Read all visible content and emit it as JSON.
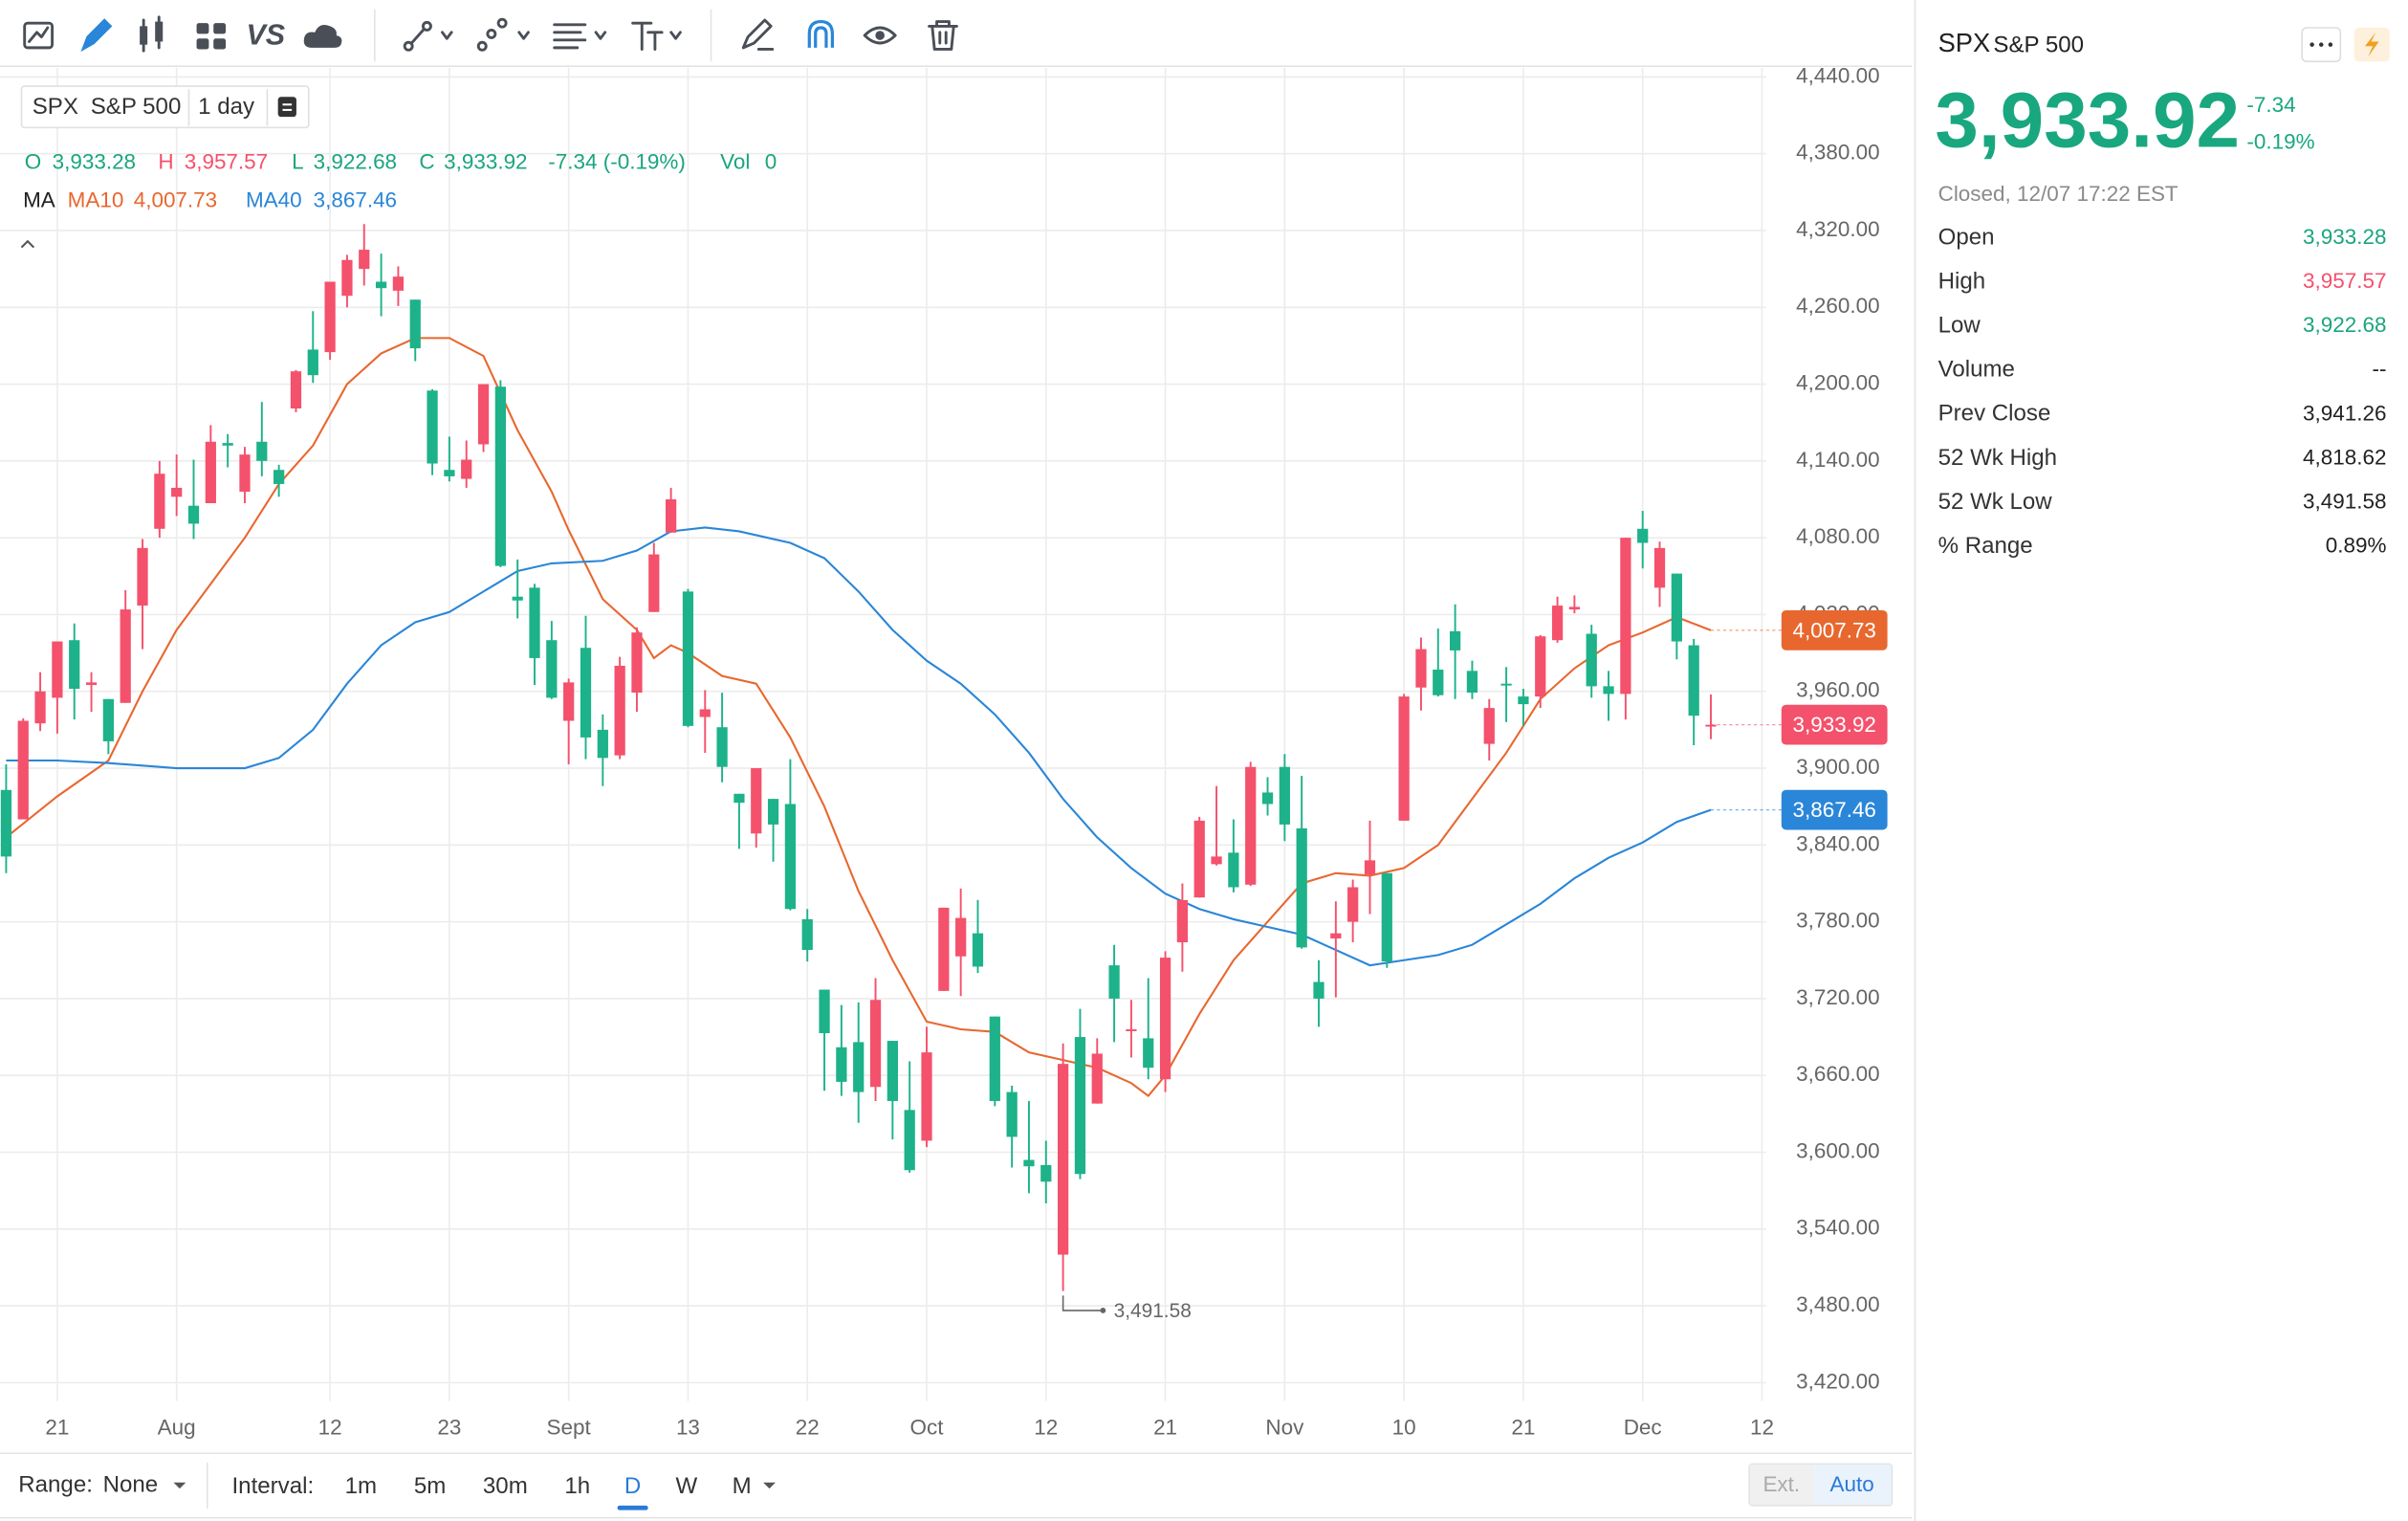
{
  "toolbar": {
    "compare": "VS"
  },
  "legend": {
    "symbol": "SPX",
    "name": "S&P 500",
    "interval": "1 day",
    "open_label": "O",
    "high_label": "H",
    "low_label": "L",
    "close_label": "C",
    "change": "-7.34 (-0.19%)",
    "volume_label": "Vol",
    "volume": 0,
    "ma_label": "MA"
  },
  "chart_data": {
    "type": "candlestick",
    "up_color": "#f4516c",
    "down_color": "#1db28a",
    "grid": true,
    "xlim": [
      -0.36,
      103.69
    ],
    "ylim": [
      3420,
      4440
    ],
    "xticks": [
      {
        "value": 3,
        "label": "21"
      },
      {
        "value": 10,
        "label": "Aug"
      },
      {
        "value": 19,
        "label": "12"
      },
      {
        "value": 26,
        "label": "23"
      },
      {
        "value": 33,
        "label": "Sept"
      },
      {
        "value": 40,
        "label": "13"
      },
      {
        "value": 47,
        "label": "22"
      },
      {
        "value": 54,
        "label": "Oct"
      },
      {
        "value": 61,
        "label": "12"
      },
      {
        "value": 68,
        "label": "21"
      },
      {
        "value": 75,
        "label": "Nov"
      },
      {
        "value": 82,
        "label": "10"
      },
      {
        "value": 89,
        "label": "21"
      },
      {
        "value": 96,
        "label": "Dec"
      },
      {
        "value": 103,
        "label": "12"
      }
    ],
    "yticks": [
      {
        "value": 4440,
        "label": "4,440.00"
      },
      {
        "value": 4380,
        "label": "4,380.00"
      },
      {
        "value": 4320,
        "label": "4,320.00"
      },
      {
        "value": 4260,
        "label": "4,260.00"
      },
      {
        "value": 4200,
        "label": "4,200.00"
      },
      {
        "value": 4140,
        "label": "4,140.00"
      },
      {
        "value": 4080,
        "label": "4,080.00"
      },
      {
        "value": 4020,
        "label": "4,020.00"
      },
      {
        "value": 3960,
        "label": "3,960.00"
      },
      {
        "value": 3900,
        "label": "3,900.00"
      },
      {
        "value": 3840,
        "label": "3,840.00"
      },
      {
        "value": 3780,
        "label": "3,780.00"
      },
      {
        "value": 3720,
        "label": "3,720.00"
      },
      {
        "value": 3660,
        "label": "3,660.00"
      },
      {
        "value": 3600,
        "label": "3,600.00"
      },
      {
        "value": 3540,
        "label": "3,540.00"
      },
      {
        "value": 3480,
        "label": "3,480.00"
      },
      {
        "value": 3420,
        "label": "3,420.00"
      }
    ],
    "open": [
      3883,
      3860,
      3935,
      3955,
      4000,
      3965,
      3954,
      3951,
      4027,
      4087,
      4112,
      4105,
      4107,
      4154,
      4116,
      4155,
      4133,
      4181,
      4227,
      4225,
      4269,
      4290,
      4280,
      4273,
      4266,
      4195,
      4133,
      4126,
      4153,
      4198,
      4034,
      4041,
      4000,
      3937,
      3994,
      3930,
      3910,
      3959,
      4022,
      4084,
      4038,
      3940,
      3932,
      3880,
      3849,
      3876,
      3872,
      3782,
      3727,
      3682,
      3686,
      3651,
      3687,
      3633,
      3609,
      3726,
      3753,
      3771,
      3706,
      3647,
      3594,
      3590,
      3520,
      3690,
      3638,
      3746,
      3696,
      3689,
      3657,
      3764,
      3799,
      3825,
      3834,
      3809,
      3881,
      3901,
      3853,
      3733,
      3767,
      3780,
      3817,
      3818,
      3859,
      3963,
      3977,
      4007,
      3976,
      3919,
      3966,
      3956,
      3956,
      4000,
      4024,
      4005,
      3964,
      3958,
      4087,
      4041,
      4052,
      3996,
      3933.28
    ],
    "high": [
      3903,
      3939,
      3975,
      3999,
      4013,
      3975,
      3954,
      4039,
      4079,
      4140,
      4145,
      4141,
      4168,
      4161,
      4151,
      4186,
      4137,
      4211,
      4257,
      4280,
      4301,
      4325,
      4302,
      4292,
      4266,
      4196,
      4159,
      4156,
      4200,
      4203,
      4063,
      4044,
      4015,
      3970,
      4019,
      3942,
      3987,
      4010,
      4076,
      4119,
      4040,
      3961,
      3959,
      3880,
      3900,
      3876,
      3907,
      3790,
      3727,
      3715,
      3717,
      3736,
      3687,
      3671,
      3698,
      3791,
      3806,
      3797,
      3706,
      3652,
      3640,
      3609,
      3685,
      3712,
      3689,
      3762,
      3719,
      3736,
      3757,
      3810,
      3862,
      3886,
      3860,
      3905,
      3893,
      3911,
      3894,
      3750,
      3796,
      3813,
      3859,
      3818,
      3958,
      4002,
      4009,
      4028,
      3984,
      3954,
      3979,
      3962,
      4004,
      4034,
      4035,
      4012,
      3976,
      4080,
      4101,
      4077,
      4052,
      4001,
      3957.57
    ],
    "low": [
      3818,
      3860,
      3929,
      3927,
      3938,
      3944,
      3911,
      3951,
      3993,
      4080,
      4097,
      4079,
      4107,
      4135,
      4107,
      4128,
      4112,
      4178,
      4201,
      4219,
      4260,
      4277,
      4253,
      4261,
      4218,
      4129,
      4124,
      4119,
      4147,
      4057,
      4017,
      3965,
      3954,
      3903,
      3907,
      3886,
      3907,
      3944,
      4022,
      4084,
      3932,
      3912,
      3889,
      3837,
      3838,
      3827,
      3789,
      3749,
      3648,
      3644,
      3623,
      3640,
      3610,
      3584,
      3604,
      3726,
      3722,
      3740,
      3636,
      3588,
      3568,
      3560,
      3491.58,
      3579,
      3638,
      3686,
      3674,
      3657,
      3647,
      3741,
      3799,
      3824,
      3803,
      3808,
      3863,
      3843,
      3759,
      3698,
      3721,
      3764,
      3786,
      3744,
      3859,
      3945,
      3956,
      3954,
      3954,
      3906,
      3936,
      3933,
      3947,
      3998,
      4021,
      3955,
      3937,
      3938,
      4056,
      4026,
      3985,
      3918,
      3922.68
    ],
    "close": [
      3831,
      3937,
      3960,
      3999,
      3962,
      3967,
      3921,
      4024,
      4072,
      4130,
      4119,
      4091,
      4155,
      4152,
      4145,
      4140,
      4122,
      4210,
      4207,
      4280,
      4297,
      4305,
      4275,
      4284,
      4228,
      4138,
      4128,
      4141,
      4200,
      4058,
      4031,
      3986,
      3955,
      3967,
      3924,
      3908,
      3980,
      4006,
      4067,
      4110,
      3933,
      3946,
      3901,
      3873,
      3900,
      3856,
      3790,
      3758,
      3693,
      3655,
      3647,
      3719,
      3640,
      3586,
      3678,
      3791,
      3783,
      3745,
      3640,
      3612,
      3589,
      3577,
      3669,
      3583,
      3677,
      3720,
      3696,
      3666,
      3752,
      3797,
      3859,
      3831,
      3807,
      3901,
      3872,
      3856,
      3760,
      3720,
      3771,
      3807,
      3828,
      3749,
      3956,
      3993,
      3957,
      3992,
      3959,
      3947,
      3965,
      3950,
      4003,
      4027,
      4026,
      3964,
      3958,
      4080,
      4076,
      4072,
      3999,
      3941,
      3933.92
    ],
    "last_labels": {
      "open": "3,933.28",
      "high": "3,957.57",
      "low": "3,922.68",
      "close": "3,933.92"
    },
    "close_tag_color": "#f4516c",
    "ma_series": [
      {
        "name": "MA10",
        "color": "#e8672f",
        "last_label": "4,007.73",
        "x": [
          0,
          3,
          6,
          8,
          10,
          12,
          14,
          16,
          18,
          20,
          22,
          24,
          26,
          28,
          30,
          32,
          33,
          35,
          37,
          38,
          39,
          40,
          42,
          44,
          46,
          48,
          50,
          52,
          54,
          56,
          58,
          60,
          62,
          64,
          66,
          67,
          68,
          70,
          72,
          74,
          76,
          78,
          80,
          82,
          84,
          86,
          88,
          90,
          92,
          94,
          96,
          98,
          100
        ],
        "values": [
          3846,
          3878,
          3906,
          3960,
          4008,
          4044,
          4080,
          4122,
          4152,
          4200,
          4224,
          4236,
          4236,
          4222,
          4164,
          4116,
          4086,
          4032,
          4008,
          3986,
          3996,
          3990,
          3972,
          3966,
          3924,
          3870,
          3804,
          3750,
          3702,
          3696,
          3694,
          3678,
          3672,
          3666,
          3654,
          3644,
          3660,
          3708,
          3750,
          3780,
          3810,
          3818,
          3816,
          3822,
          3840,
          3876,
          3912,
          3954,
          3978,
          3996,
          4006,
          4018,
          4007.73
        ]
      },
      {
        "name": "MA40",
        "color": "#2a86d8",
        "last_label": "3,867.46",
        "x": [
          0,
          3,
          6,
          8,
          10,
          12,
          14,
          16,
          18,
          20,
          22,
          24,
          26,
          28,
          30,
          32,
          35,
          37,
          39,
          41,
          43,
          46,
          48,
          50,
          52,
          54,
          56,
          58,
          60,
          62,
          64,
          66,
          68,
          70,
          72,
          74,
          76,
          78,
          80,
          82,
          84,
          86,
          88,
          90,
          92,
          94,
          96,
          98,
          100
        ],
        "values": [
          3906,
          3906,
          3904,
          3902,
          3900,
          3900,
          3900,
          3908,
          3930,
          3966,
          3996,
          4014,
          4022,
          4038,
          4054,
          4060,
          4062,
          4070,
          4085,
          4088,
          4085,
          4076,
          4064,
          4038,
          4008,
          3984,
          3966,
          3942,
          3912,
          3876,
          3846,
          3822,
          3802,
          3790,
          3782,
          3776,
          3770,
          3758,
          3746,
          3750,
          3754,
          3762,
          3778,
          3794,
          3814,
          3830,
          3842,
          3858,
          3867.46
        ]
      }
    ],
    "low_annotation": {
      "value": 3491.58,
      "label": "3,491.58"
    }
  },
  "bottom_bar": {
    "range_label": "Range:",
    "range": "None",
    "interval_label": "Interval:",
    "intervals": [
      "1m",
      "5m",
      "30m",
      "1h",
      "D",
      "W",
      "M"
    ],
    "selected": "D",
    "session": [
      "Ext.",
      "Auto"
    ]
  },
  "quote": {
    "symbol": "SPX",
    "name": "S&P 500",
    "price": "3,933.92",
    "change": "-7.34",
    "change_pct": "-0.19%",
    "status": "Closed, 12/07 17:22 EST",
    "rows": [
      {
        "label": "Open",
        "value": "3,933.28",
        "color": "#1aa57e"
      },
      {
        "label": "High",
        "value": "3,957.57",
        "color": "#f4516c"
      },
      {
        "label": "Low",
        "value": "3,922.68",
        "color": "#1aa57e"
      },
      {
        "label": "Volume",
        "value": "--"
      },
      {
        "label": "Prev Close",
        "value": "3,941.26"
      },
      {
        "label": "52 Wk High",
        "value": "4,818.62"
      },
      {
        "label": "52 Wk Low",
        "value": "3,491.58"
      },
      {
        "label": "% Range",
        "value": "0.89%"
      }
    ]
  }
}
